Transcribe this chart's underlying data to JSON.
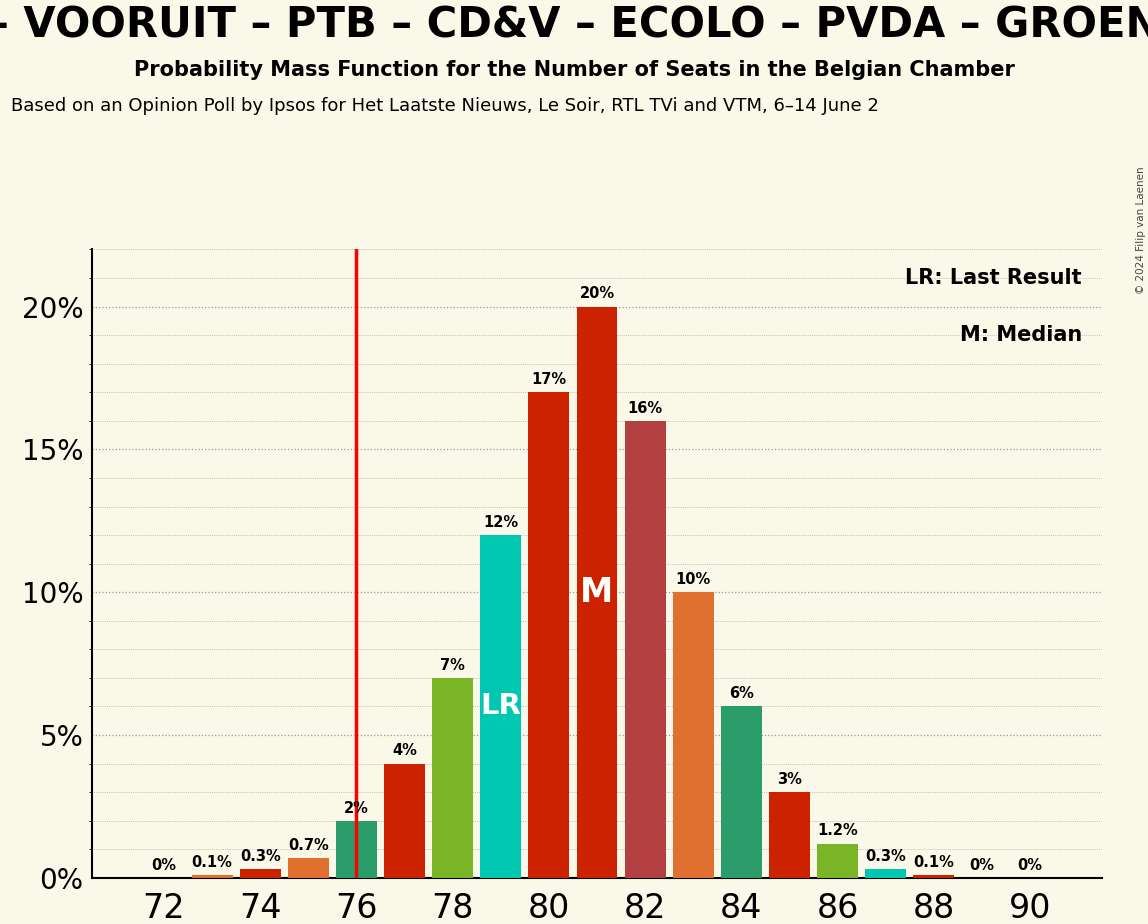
{
  "seats": [
    72,
    73,
    74,
    75,
    76,
    77,
    78,
    79,
    80,
    81,
    82,
    83,
    84,
    85,
    86,
    87,
    88,
    89,
    90
  ],
  "probs": [
    0.0,
    0.1,
    0.3,
    0.7,
    2.0,
    4.0,
    7.0,
    12.0,
    17.0,
    20.0,
    16.0,
    10.0,
    6.0,
    3.0,
    1.2,
    0.3,
    0.1,
    0.0,
    0.0
  ],
  "bar_colors": [
    "#cc2200",
    "#e07030",
    "#cc2200",
    "#e07030",
    "#2a9d6a",
    "#cc2200",
    "#7ab527",
    "#00c8b0",
    "#cc2200",
    "#cc2200",
    "#b34040",
    "#e07030",
    "#2a9d6a",
    "#cc2200",
    "#7ab527",
    "#00c8b0",
    "#cc2200",
    "#cc2200",
    "#cc2200"
  ],
  "last_result_x": 76,
  "median_seat": 81,
  "lr_label_seat": 79,
  "title1": "– VOORUIT – PTB – CD&V – ECOLO – PVDA – GROEN",
  "title2": "Probability Mass Function for the Number of Seats in the Belgian Chamber",
  "subtitle": "Based on an Opinion Poll by Ipsos for Het Laatste Nieuws, Le Soir, RTL TVi and VTM, 6–14 June 2",
  "copyright": "© 2024 Filip van Laenen",
  "bg_color": "#faf8e8",
  "ylim": [
    0,
    22
  ],
  "xlim_left": 70.5,
  "xlim_right": 91.5,
  "bar_width": 0.85
}
